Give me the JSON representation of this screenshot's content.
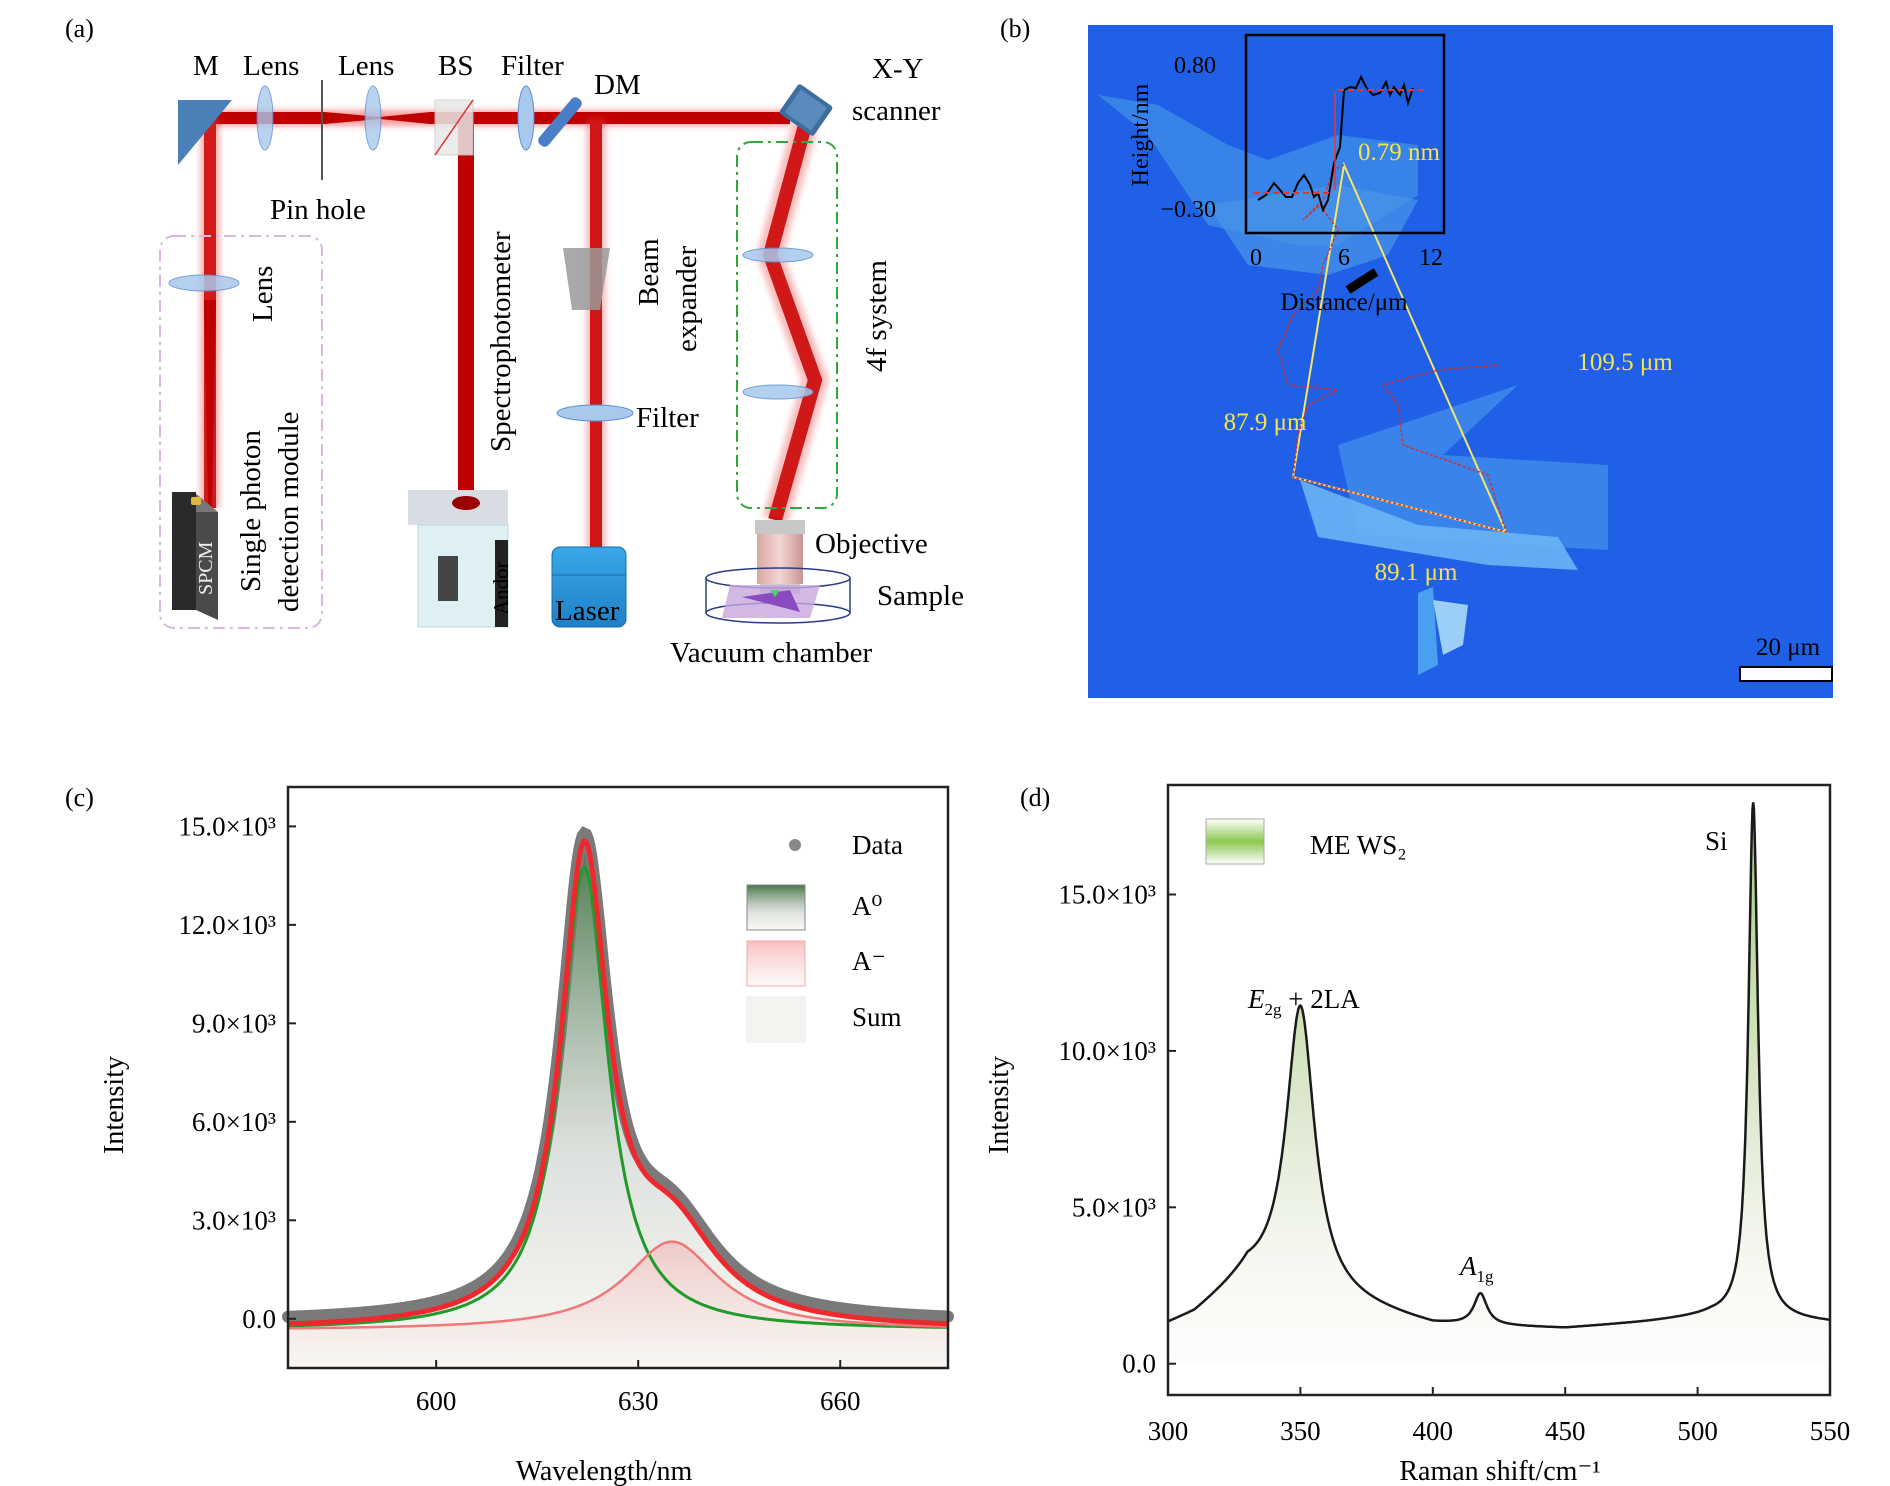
{
  "panels": {
    "a": {
      "label": "(a)",
      "components": {
        "mirror": "M",
        "lens1": "Lens",
        "lens2": "Lens",
        "beam_splitter": "BS",
        "filter_top": "Filter",
        "dichroic": "DM",
        "scanner_line1": "X-Y",
        "scanner_line2": "scanner",
        "pinhole": "Pin hole",
        "lens_vertical": "Lens",
        "spcm_module_line1": "Single photon",
        "spcm_module_line2": "detection module",
        "spcm": "SPCM",
        "spectrophotometer": "Spectrophotometer",
        "andor": "Andor",
        "beam_expander_line1": "Beam",
        "beam_expander_line2": "expander",
        "filter_bottom": "Filter",
        "laser": "Laser",
        "four_f": "4f system",
        "objective": "Objective",
        "sample": "Sample",
        "vacuum_chamber": "Vacuum chamber"
      }
    },
    "b": {
      "label": "(b)",
      "inset": {
        "ylabel": "Height/nm",
        "xlabel": "Distance/μm",
        "yticks": [
          "0.80",
          "−0.30"
        ],
        "xticks": [
          "0",
          "6",
          "12"
        ],
        "step_height": "0.79 nm"
      },
      "side_lengths": [
        "109.5 μm",
        "87.9 μm",
        "89.1 μm"
      ],
      "scale_bar": "20 μm"
    },
    "c": {
      "label": "(c)"
    },
    "d": {
      "label": "(d)"
    }
  },
  "chart_data": [
    {
      "panel": "c",
      "type": "line",
      "title": "",
      "xlabel": "Wavelength/nm",
      "ylabel": "Intensity",
      "xlim": [
        578,
        676
      ],
      "ylim": [
        -1500,
        16200
      ],
      "xticks": [
        600,
        630,
        660
      ],
      "xtick_labels": [
        "600",
        "630",
        "660"
      ],
      "yticks": [
        0,
        3000,
        6000,
        9000,
        12000,
        15000
      ],
      "ytick_labels": [
        "0.0",
        "3.0×10³",
        "6.0×10³",
        "9.0×10³",
        "12.0×10³",
        "15.0×10³"
      ],
      "legend": {
        "placement": "top-right",
        "entries": [
          "Data",
          "A⁰",
          "A⁻",
          "Sum"
        ]
      },
      "series": [
        {
          "name": "A⁰",
          "model": "lorentzian",
          "center": 622,
          "amplitude": 14100,
          "fwhm": 8.5,
          "baseline": -350,
          "color": "#1e9b2a"
        },
        {
          "name": "A⁻",
          "model": "lorentzian",
          "center": 635,
          "amplitude": 2700,
          "fwhm": 17,
          "baseline": -350,
          "color": "#f07878"
        },
        {
          "name": "Sum",
          "model": "sum",
          "color": "#f0282d"
        },
        {
          "name": "Data",
          "model": "sum-with-offset",
          "color": "#808080"
        }
      ],
      "grid": false
    },
    {
      "panel": "d",
      "type": "line",
      "title": "",
      "xlabel": "Raman shift/cm⁻¹",
      "ylabel": "Intensity",
      "xlim": [
        300,
        550
      ],
      "ylim": [
        -1000,
        18500
      ],
      "xticks": [
        300,
        350,
        400,
        450,
        500,
        550
      ],
      "xtick_labels": [
        "300",
        "350",
        "400",
        "450",
        "500",
        "550"
      ],
      "yticks": [
        0,
        5000,
        10000,
        15000
      ],
      "ytick_labels": [
        "0.0",
        "5.0×10³",
        "10.0×10³",
        "15.0×10³"
      ],
      "legend": {
        "placement": "top-left",
        "entries": [
          "ME WS₂"
        ]
      },
      "annotations": [
        "E2g + 2LA",
        "A1g",
        "Si"
      ],
      "peaks": [
        {
          "label": "E2g + 2LA",
          "x": 350,
          "y": 11000
        },
        {
          "label": "shoulder",
          "x": 320,
          "y": 2900
        },
        {
          "label": "A1g",
          "x": 418,
          "y": 2300
        },
        {
          "label": "Si",
          "x": 521,
          "y": 17900
        }
      ],
      "baseline_points": [
        [
          300,
          1200
        ],
        [
          310,
          1500
        ],
        [
          330,
          2700
        ],
        [
          365,
          1900
        ],
        [
          385,
          1500
        ],
        [
          400,
          1200
        ],
        [
          450,
          1100
        ],
        [
          480,
          1300
        ],
        [
          505,
          1500
        ],
        [
          550,
          1300
        ]
      ],
      "series": [
        {
          "name": "ME WS₂",
          "color": "#1a1a1a",
          "fill": "#8cc850"
        }
      ],
      "grid": false
    }
  ]
}
